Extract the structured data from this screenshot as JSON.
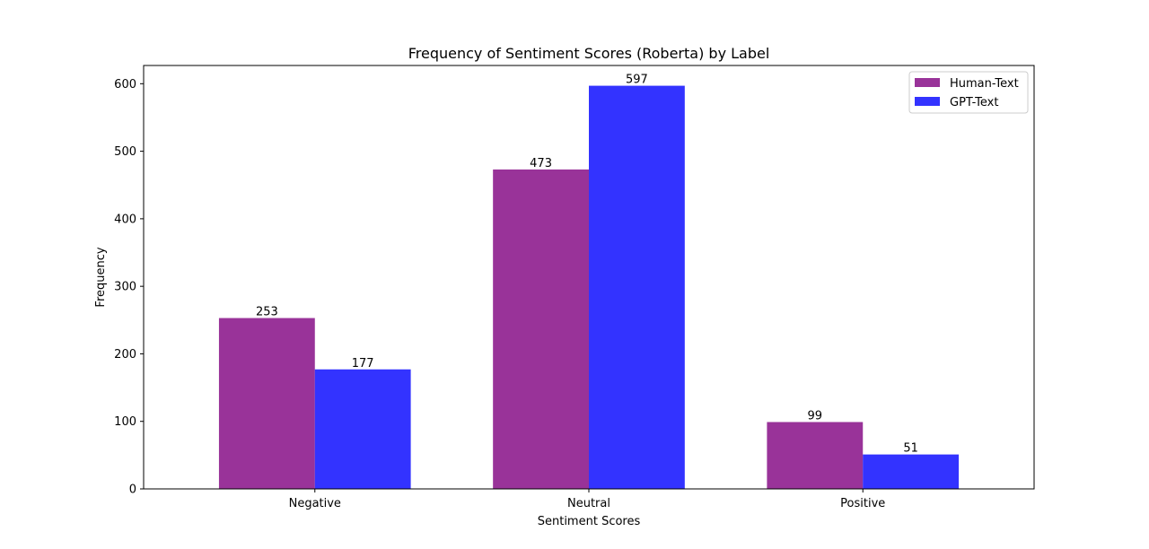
{
  "chart_data": {
    "type": "bar",
    "title": "Frequency of Sentiment Scores (Roberta) by Label",
    "xlabel": "Sentiment Scores",
    "ylabel": "Frequency",
    "categories": [
      "Negative",
      "Neutral",
      "Positive"
    ],
    "series": [
      {
        "name": "Human-Text",
        "color": "#800080",
        "values": [
          253,
          473,
          99
        ]
      },
      {
        "name": "GPT-Text",
        "color": "#0000ff",
        "values": [
          177,
          597,
          51
        ]
      }
    ],
    "bar_opacity": 0.8,
    "ylim": [
      0,
      627
    ],
    "yticks": [
      0,
      100,
      200,
      300,
      400,
      500,
      600
    ],
    "grid": false,
    "legend_position": "top-right"
  }
}
